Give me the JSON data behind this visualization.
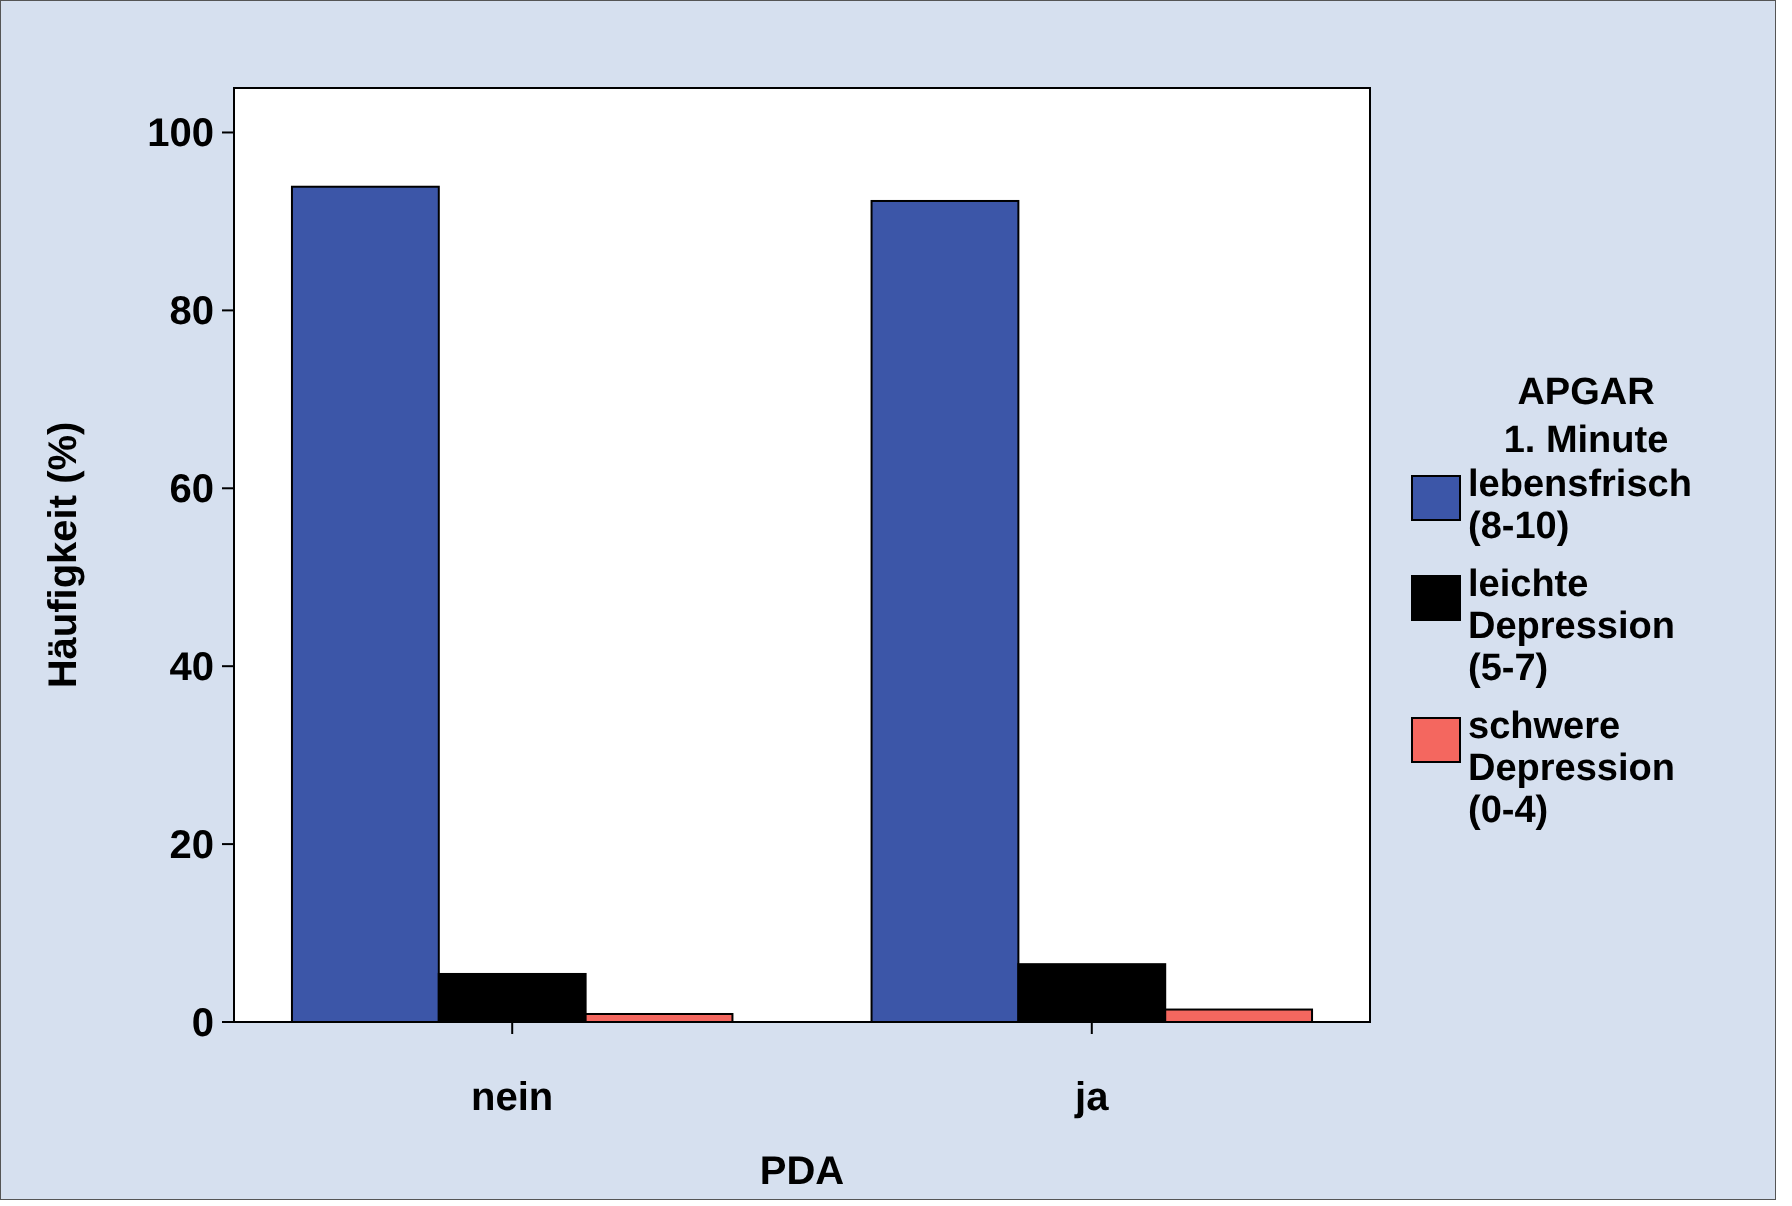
{
  "chart_data": {
    "type": "bar",
    "xlabel": "PDA",
    "ylabel": "Häufigkeit (%)",
    "legend_title": "APGAR\n1. Minute",
    "categories": [
      "nein",
      "ja"
    ],
    "series": [
      {
        "name": "lebensfrisch (8-10)",
        "color": "#3c56a8",
        "values": [
          93.9,
          92.3
        ]
      },
      {
        "name": "leichte Depression (5-7)",
        "color": "#000000",
        "values": [
          5.4,
          6.5
        ]
      },
      {
        "name": "schwere Depression (0-4)",
        "color": "#f4675f",
        "values": [
          0.9,
          1.4
        ]
      }
    ],
    "ylim": [
      0,
      105
    ],
    "yticks": [
      0,
      20,
      40,
      60,
      80,
      100
    ],
    "legend": "right",
    "grid": false
  }
}
